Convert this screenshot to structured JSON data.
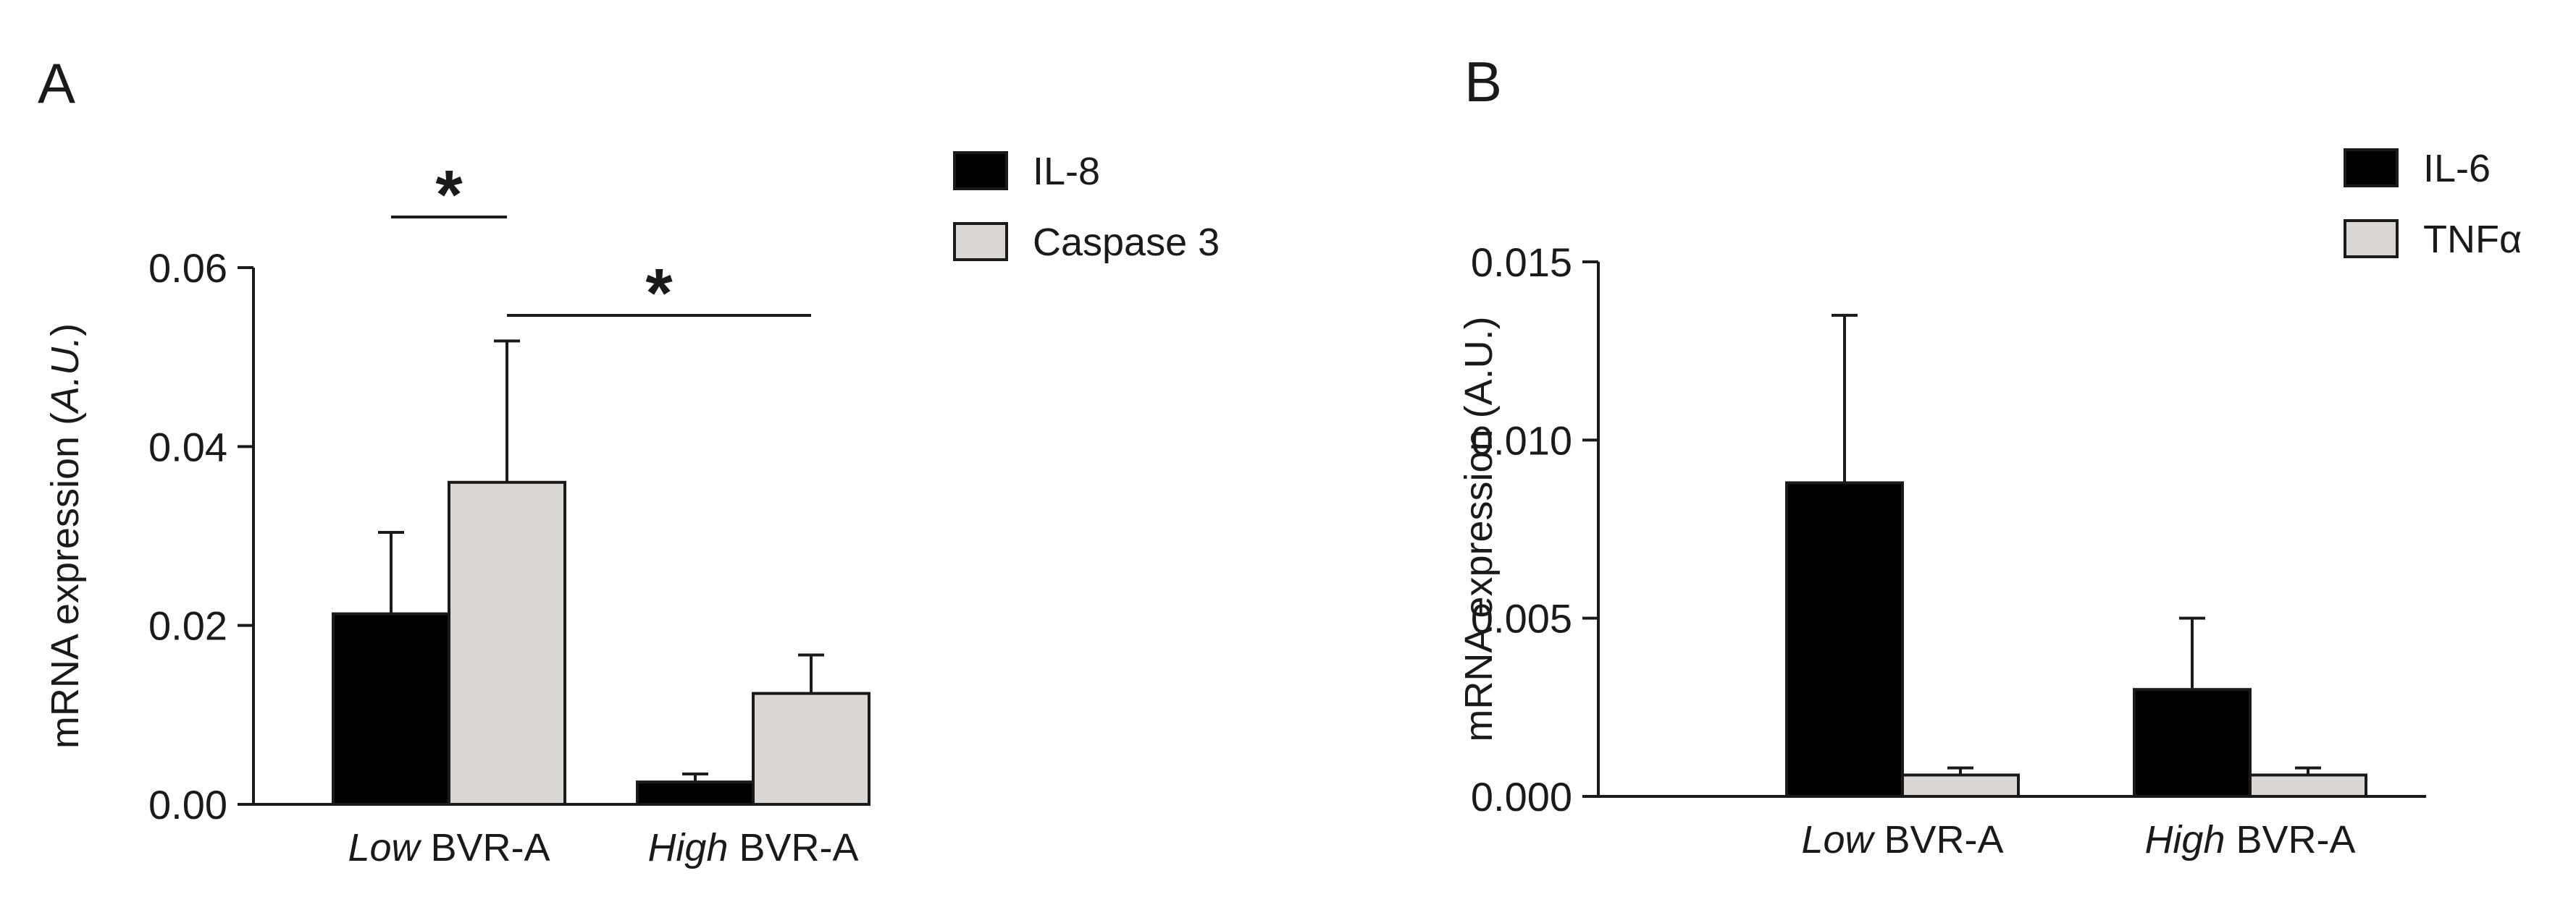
{
  "chart_data": [
    {
      "panel_label": "A",
      "type": "bar",
      "ylabel_prefix": "mRNA expression (",
      "ylabel_italic": "A.U.",
      "ylabel_suffix": ")",
      "ylim": [
        0,
        0.06
      ],
      "yticks": [
        "0.00",
        "0.02",
        "0.04",
        "0.06"
      ],
      "ytick_values": [
        0,
        0.02,
        0.04,
        0.06
      ],
      "categories": [
        {
          "italic": "Low",
          "rest": " BVR-A"
        },
        {
          "italic": "High",
          "rest": " BVR-A"
        }
      ],
      "series": [
        {
          "name": "IL-8",
          "color": "#000000",
          "values": [
            0.0213,
            0.0025
          ],
          "errors": [
            0.0091,
            0.0009
          ]
        },
        {
          "name": "Caspase 3",
          "color": "#d9d6d3",
          "values": [
            0.036,
            0.0124
          ],
          "errors": [
            0.0158,
            0.0043
          ]
        }
      ],
      "significance": [
        {
          "label": "*",
          "from": {
            "category": 0,
            "series": 0
          },
          "to": {
            "category": 0,
            "series": 1
          }
        },
        {
          "label": "*",
          "from": {
            "category": 0,
            "series": 1
          },
          "to": {
            "category": 1,
            "series": 1
          }
        }
      ],
      "legend_position": "top-right"
    },
    {
      "panel_label": "B",
      "type": "bar",
      "ylabel_prefix": "mRNA expression (A.U.)",
      "ylabel_italic": "",
      "ylabel_suffix": "",
      "ylim": [
        0,
        0.015
      ],
      "yticks": [
        "0.000",
        "0.005",
        "0.010",
        "0.015"
      ],
      "ytick_values": [
        0,
        0.005,
        0.01,
        0.015
      ],
      "categories": [
        {
          "italic": "Low",
          "rest": " BVR-A"
        },
        {
          "italic": "High",
          "rest": " BVR-A"
        }
      ],
      "series": [
        {
          "name": "IL-6",
          "color": "#000000",
          "values": [
            0.0088,
            0.003
          ],
          "errors": [
            0.0047,
            0.002
          ]
        },
        {
          "name": "TNFα",
          "color": "#d9d6d3",
          "values": [
            0.0006,
            0.0006
          ],
          "errors": [
            0.0002,
            0.0002
          ]
        }
      ],
      "significance": [],
      "legend_position": "top-right"
    }
  ]
}
